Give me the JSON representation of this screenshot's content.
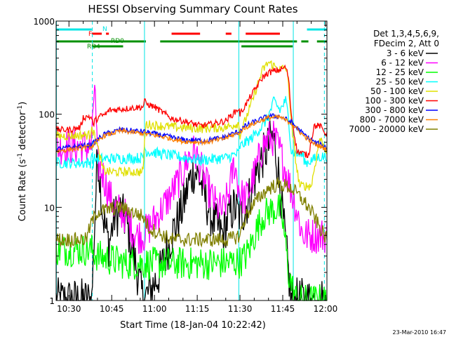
{
  "chart_data": {
    "type": "line",
    "title": "HESSI Observing Summary Count Rates",
    "xlabel": "Start Time (18-Jan-04 10:22:42)",
    "ylabel_prefix": "Count Rate (s",
    "ylabel_sup": "-1",
    "ylabel_mid": " detector",
    "ylabel_suffix": ")",
    "y_scale": "log",
    "ylim": [
      1,
      1000
    ],
    "xlim_min": [
      25.5,
      120.5
    ],
    "x_ticks": [
      {
        "min": 30,
        "label": "10:30"
      },
      {
        "min": 45,
        "label": "10:45"
      },
      {
        "min": 60,
        "label": "11:00"
      },
      {
        "min": 75,
        "label": "11:15"
      },
      {
        "min": 90,
        "label": "11:30"
      },
      {
        "min": 105,
        "label": "11:45"
      },
      {
        "min": 120,
        "label": "12:00"
      }
    ],
    "y_ticks": [
      {
        "value": 1,
        "label": "1"
      },
      {
        "value": 10,
        "label": "10"
      },
      {
        "value": 100,
        "label": "100"
      },
      {
        "value": 1000,
        "label": "1000"
      }
    ],
    "legend_header": [
      "Det 1,3,4,5,6,9,",
      "FDecim 2, Att 0"
    ],
    "footer_date": "23-Mar-2010 16:47",
    "flag_bars": [
      {
        "label": "N",
        "color": "#00e5e5",
        "segments": [
          [
            25.5,
            38
          ],
          [
            113.5,
            120.5
          ]
        ],
        "level": 1
      },
      {
        "label": "F",
        "color": "#ff0000",
        "segments": [
          [
            38,
            41.5
          ],
          [
            43,
            44
          ],
          [
            66,
            76
          ],
          [
            85,
            87
          ],
          [
            92,
            104
          ]
        ],
        "level": 2
      },
      {
        "label": "RD0",
        "color": "#009000",
        "segments": [
          [
            25.5,
            38
          ],
          [
            38,
            57
          ],
          [
            62,
            91
          ],
          [
            91,
            110
          ],
          [
            111.5,
            114
          ]
        ],
        "level": 3
      }
    ],
    "flag_text": [
      {
        "text": "N",
        "color": "#00e5e5"
      },
      {
        "text": "F",
        "color": "#ff0000"
      },
      {
        "text": "RD0",
        "color": "#009000"
      },
      {
        "text": "RD4",
        "color": "#009000"
      }
    ],
    "vlines": [
      {
        "min": 25.6,
        "style": "solid"
      },
      {
        "min": 38.2,
        "style": "dashed"
      },
      {
        "min": 56.5,
        "style": "solid"
      },
      {
        "min": 89.6,
        "style": "solid"
      },
      {
        "min": 108.7,
        "style": "solid"
      },
      {
        "min": 119.6,
        "style": "dashed"
      }
    ],
    "series": [
      {
        "name": "3 - 6 keV",
        "color": "#000000",
        "jitter": 0.25,
        "x": [
          25.5,
          34,
          38,
          40,
          42,
          44,
          46,
          48,
          50,
          52,
          54,
          56,
          58,
          62,
          66,
          70,
          72,
          74,
          76,
          78,
          80,
          82,
          84,
          86,
          88,
          90,
          92,
          94,
          96,
          98,
          100,
          101,
          102,
          103,
          104,
          105,
          106,
          107,
          108
        ],
        "y": [
          1,
          1,
          1,
          40,
          8,
          4,
          8,
          9,
          7,
          4,
          2,
          1,
          1.2,
          2,
          5,
          10,
          18,
          25,
          20,
          12,
          8,
          6,
          5,
          8,
          10,
          8,
          10,
          15,
          25,
          35,
          45,
          55,
          50,
          30,
          18,
          8,
          4,
          2,
          1
        ]
      },
      {
        "name": "6 - 12 keV",
        "color": "#ff00ff",
        "jitter": 0.2,
        "x": [
          25.5,
          34,
          38.1,
          38.5,
          39,
          40,
          42,
          44,
          46,
          48,
          50,
          52,
          54,
          56,
          58,
          62,
          66,
          70,
          72,
          74,
          76,
          78,
          80,
          82,
          84,
          86,
          88,
          90,
          92,
          94,
          96,
          98,
          100,
          102,
          104,
          106,
          108,
          110,
          112
        ],
        "y": [
          45,
          45,
          45,
          120,
          220,
          30,
          22,
          14,
          10,
          9,
          8,
          6,
          5,
          5,
          6,
          9,
          14,
          24,
          35,
          40,
          28,
          18,
          13,
          10,
          9,
          14,
          30,
          14,
          12,
          18,
          28,
          45,
          55,
          55,
          40,
          25,
          15,
          9,
          5
        ]
      },
      {
        "name": "12 - 25 keV",
        "color": "#00ff00",
        "jitter": 0.18,
        "x": [
          25.5,
          38,
          40,
          50,
          60,
          70,
          80,
          90,
          92,
          94,
          96,
          98,
          100,
          102,
          104,
          105,
          106,
          107,
          108,
          109,
          110
        ],
        "y": [
          3.5,
          3.5,
          3,
          2.5,
          2.5,
          2.5,
          2.5,
          2.6,
          3,
          4,
          6,
          8,
          9,
          9.5,
          9.5,
          7,
          4,
          2,
          1.5,
          1.2,
          1
        ]
      },
      {
        "name": "25 - 50 keV",
        "color": "#00ffff",
        "jitter": 0.06,
        "x": [
          25.5,
          37.5,
          38,
          38.5,
          39,
          56,
          56.5,
          57,
          66,
          76,
          85,
          89.5,
          90,
          94,
          96,
          98,
          100,
          102,
          104,
          106,
          107,
          108,
          110,
          112,
          113,
          115,
          118,
          120.5
        ],
        "y": [
          30,
          30,
          40,
          30,
          33,
          34,
          45,
          40,
          36,
          32,
          34,
          38,
          45,
          55,
          65,
          75,
          95,
          140,
          110,
          140,
          95,
          40,
          38,
          36,
          30,
          32,
          35,
          35
        ]
      },
      {
        "name": "50 - 100 keV",
        "color": "#e0e000",
        "jitter": 0.05,
        "x": [
          25.5,
          37.5,
          38,
          38.5,
          39,
          42,
          44,
          56,
          56.5,
          57,
          66,
          76,
          85,
          89.5,
          90,
          94,
          96,
          98,
          100,
          102,
          104,
          106,
          107,
          108,
          110,
          111,
          112,
          115,
          118,
          120.5
        ],
        "y": [
          58,
          60,
          80,
          62,
          60,
          25,
          24,
          24,
          50,
          78,
          73,
          70,
          72,
          80,
          60,
          130,
          200,
          300,
          360,
          330,
          300,
          320,
          220,
          80,
          25,
          17,
          17,
          17,
          55,
          40
        ]
      },
      {
        "name": "100 - 300 keV",
        "color": "#ff0000",
        "jitter": 0.035,
        "x": [
          25.5,
          30,
          34,
          35,
          37,
          38,
          38.5,
          39,
          41,
          43,
          44,
          56,
          56.5,
          57,
          60,
          66,
          70,
          76,
          80,
          85,
          89.5,
          90,
          94,
          96,
          98,
          100,
          102,
          104,
          106,
          107,
          108,
          110,
          112,
          114,
          116,
          118,
          120.5
        ],
        "y": [
          68,
          68,
          72,
          92,
          95,
          90,
          75,
          85,
          95,
          100,
          110,
          120,
          140,
          130,
          120,
          90,
          85,
          75,
          78,
          85,
          115,
          100,
          160,
          200,
          250,
          280,
          290,
          300,
          320,
          250,
          100,
          40,
          38,
          36,
          75,
          75,
          60
        ]
      },
      {
        "name": "300 - 800 keV",
        "color": "#0000ff",
        "jitter": 0.03,
        "x": [
          25.5,
          38,
          42,
          48,
          56,
          62,
          70,
          78,
          84,
          89.5,
          92,
          96,
          100,
          104,
          108,
          112,
          116,
          120.5
        ],
        "y": [
          42,
          47,
          60,
          68,
          65,
          60,
          53,
          52,
          56,
          65,
          75,
          85,
          95,
          95,
          82,
          62,
          50,
          44
        ]
      },
      {
        "name": "800 - 7000 keV",
        "color": "#ff8000",
        "jitter": 0.025,
        "x": [
          25.5,
          38,
          42,
          48,
          56,
          62,
          70,
          78,
          84,
          89.5,
          92,
          96,
          100,
          104,
          108,
          112,
          116,
          120.5
        ],
        "y": [
          40,
          45,
          58,
          66,
          62,
          58,
          51,
          50,
          54,
          63,
          72,
          82,
          92,
          93,
          80,
          60,
          48,
          42
        ]
      },
      {
        "name": "7000 - 20000 keV",
        "color": "#808000",
        "jitter": 0.08,
        "x": [
          25.5,
          36,
          38,
          40,
          44,
          48,
          52,
          56,
          58,
          66,
          76,
          86,
          90,
          92,
          94,
          96,
          98,
          100,
          102,
          104,
          106,
          108,
          110,
          112,
          114,
          116,
          118,
          120.5
        ],
        "y": [
          4.5,
          4.5,
          7,
          9,
          9.5,
          10,
          9,
          8,
          6,
          4.5,
          4.5,
          4.5,
          5,
          8,
          10,
          12,
          14,
          16,
          17,
          17.5,
          17,
          16,
          14,
          12,
          10,
          8,
          6,
          4.5
        ]
      }
    ]
  }
}
